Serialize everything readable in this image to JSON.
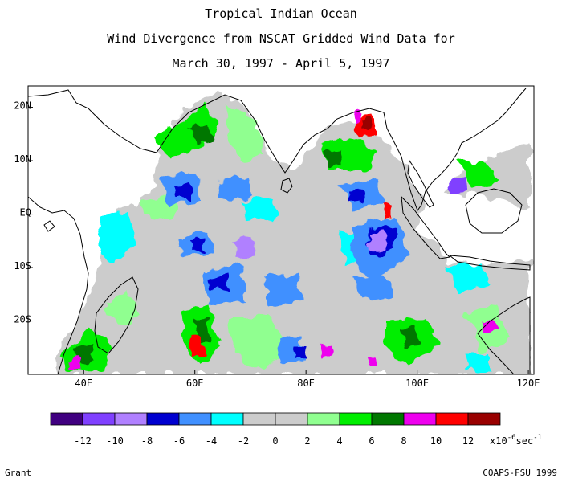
{
  "title": {
    "line1": "Tropical Indian Ocean",
    "line2": "Wind Divergence from NSCAT Gridded Wind Data for",
    "line3": "March 30, 1997 - April 5, 1997"
  },
  "axes": {
    "x_ticks": [
      "40E",
      "60E",
      "80E",
      "100E",
      "120E"
    ],
    "x_tick_values": [
      40,
      60,
      80,
      100,
      120
    ],
    "y_ticks": [
      "20N",
      "10N",
      "EQ",
      "10S",
      "20S"
    ],
    "y_tick_values": [
      20,
      10,
      0,
      -10,
      -20
    ],
    "lon_range": [
      30,
      121
    ],
    "lat_range": [
      -30,
      24
    ]
  },
  "colorbar": {
    "colors": [
      "#400080",
      "#8040ff",
      "#b080ff",
      "#0000d0",
      "#4090ff",
      "#00ffff",
      "#cccccc",
      "#cccccc",
      "#90ff90",
      "#00ee00",
      "#007700",
      "#ee00ee",
      "#ff0000",
      "#990000"
    ],
    "labels": [
      "-12",
      "-10",
      "-8",
      "-6",
      "-4",
      "-2",
      "0",
      "2",
      "4",
      "6",
      "8",
      "10",
      "12"
    ],
    "unit_base": "x10",
    "unit_exp": "-6",
    "unit_tail": "sec",
    "unit_tail_exp": "-1"
  },
  "footer": {
    "left": "Grant",
    "right": "COAPS-FSU 1999"
  }
}
